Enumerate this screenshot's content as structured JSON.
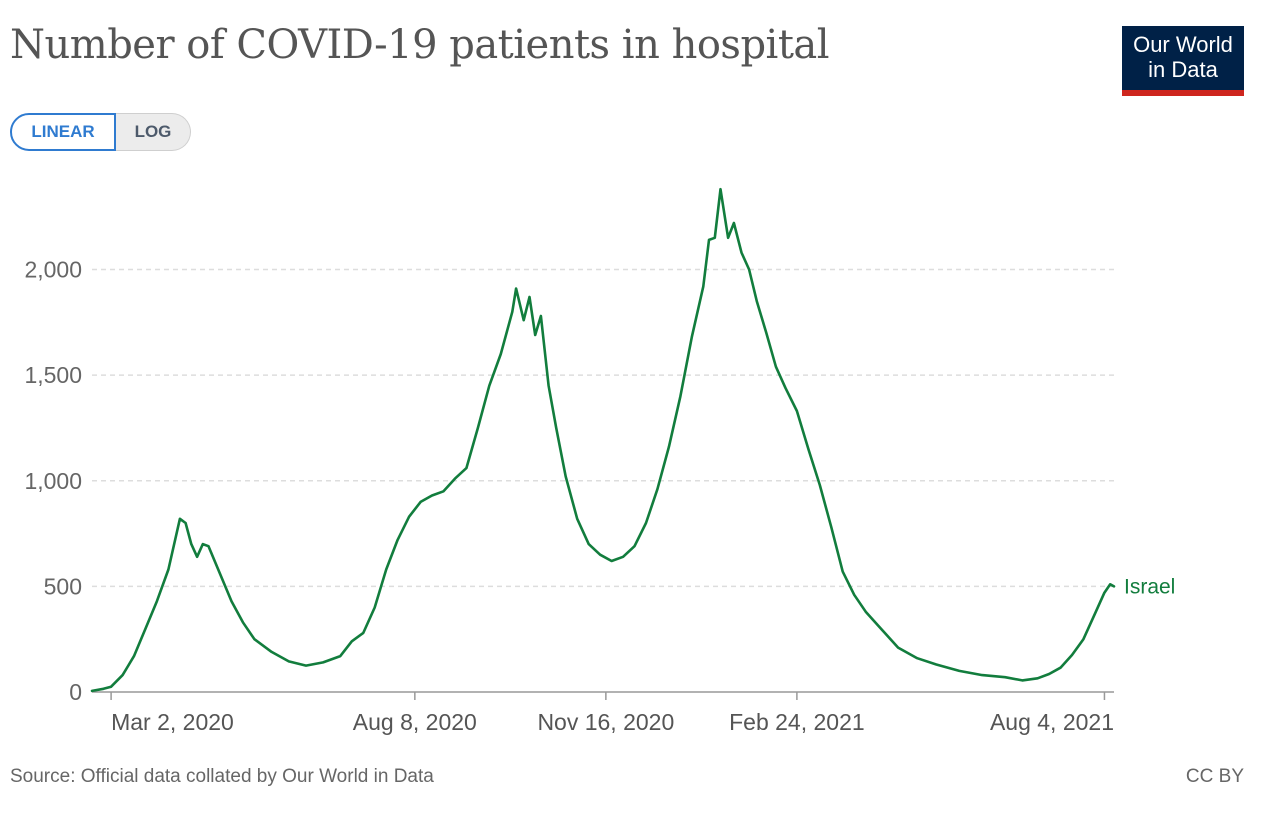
{
  "header": {
    "title": "Number of COVID-19 patients in hospital",
    "logo_line1": "Our World",
    "logo_line2": "in Data"
  },
  "controls": {
    "linear_label": "LINEAR",
    "log_label": "LOG",
    "selected": "LINEAR"
  },
  "footer": {
    "source": "Source: Official data collated by Our World in Data",
    "license": "CC BY"
  },
  "colors": {
    "series": "#127d3d",
    "grid": "#dddddd",
    "logo_bg": "#002147",
    "logo_accent": "#ce261e",
    "active_toggle": "#2f7bd0"
  },
  "chart_data": {
    "type": "line",
    "title": "Number of COVID-19 patients in hospital",
    "xlabel": "",
    "ylabel": "",
    "ylim": [
      0,
      2400
    ],
    "xlim": [
      "2020-02-21",
      "2021-08-09"
    ],
    "grid": "horizontal dashed",
    "y_ticks": [
      {
        "value": 0,
        "label": "0"
      },
      {
        "value": 500,
        "label": "500"
      },
      {
        "value": 1000,
        "label": "1,000"
      },
      {
        "value": 1500,
        "label": "1,500"
      },
      {
        "value": 2000,
        "label": "2,000"
      }
    ],
    "x_ticks": [
      {
        "date": "2020-03-02",
        "label": "Mar 2, 2020"
      },
      {
        "date": "2020-08-08",
        "label": "Aug 8, 2020"
      },
      {
        "date": "2020-11-16",
        "label": "Nov 16, 2020"
      },
      {
        "date": "2021-02-24",
        "label": "Feb 24, 2021"
      },
      {
        "date": "2021-08-04",
        "label": "Aug 4, 2021"
      }
    ],
    "series": [
      {
        "name": "Israel",
        "color": "#127d3d",
        "points": [
          [
            "2020-02-21",
            5
          ],
          [
            "2020-02-27",
            15
          ],
          [
            "2020-03-02",
            25
          ],
          [
            "2020-03-08",
            80
          ],
          [
            "2020-03-14",
            170
          ],
          [
            "2020-03-20",
            300
          ],
          [
            "2020-03-26",
            430
          ],
          [
            "2020-04-01",
            580
          ],
          [
            "2020-04-07",
            820
          ],
          [
            "2020-04-10",
            800
          ],
          [
            "2020-04-13",
            700
          ],
          [
            "2020-04-16",
            640
          ],
          [
            "2020-04-19",
            700
          ],
          [
            "2020-04-22",
            690
          ],
          [
            "2020-04-28",
            560
          ],
          [
            "2020-05-04",
            430
          ],
          [
            "2020-05-10",
            330
          ],
          [
            "2020-05-16",
            250
          ],
          [
            "2020-05-25",
            190
          ],
          [
            "2020-06-03",
            145
          ],
          [
            "2020-06-12",
            125
          ],
          [
            "2020-06-21",
            140
          ],
          [
            "2020-06-30",
            170
          ],
          [
            "2020-07-06",
            240
          ],
          [
            "2020-07-12",
            280
          ],
          [
            "2020-07-18",
            400
          ],
          [
            "2020-07-24",
            580
          ],
          [
            "2020-07-30",
            720
          ],
          [
            "2020-08-05",
            830
          ],
          [
            "2020-08-11",
            900
          ],
          [
            "2020-08-17",
            930
          ],
          [
            "2020-08-23",
            950
          ],
          [
            "2020-08-29",
            1010
          ],
          [
            "2020-09-04",
            1060
          ],
          [
            "2020-09-10",
            1250
          ],
          [
            "2020-09-16",
            1450
          ],
          [
            "2020-09-22",
            1600
          ],
          [
            "2020-09-28",
            1800
          ],
          [
            "2020-09-30",
            1910
          ],
          [
            "2020-10-04",
            1760
          ],
          [
            "2020-10-07",
            1870
          ],
          [
            "2020-10-10",
            1690
          ],
          [
            "2020-10-13",
            1780
          ],
          [
            "2020-10-17",
            1450
          ],
          [
            "2020-10-21",
            1250
          ],
          [
            "2020-10-26",
            1020
          ],
          [
            "2020-11-01",
            820
          ],
          [
            "2020-11-07",
            700
          ],
          [
            "2020-11-13",
            650
          ],
          [
            "2020-11-19",
            620
          ],
          [
            "2020-11-25",
            640
          ],
          [
            "2020-12-01",
            690
          ],
          [
            "2020-12-07",
            800
          ],
          [
            "2020-12-13",
            960
          ],
          [
            "2020-12-19",
            1160
          ],
          [
            "2020-12-25",
            1400
          ],
          [
            "2020-12-31",
            1680
          ],
          [
            "2021-01-06",
            1920
          ],
          [
            "2021-01-09",
            2140
          ],
          [
            "2021-01-12",
            2150
          ],
          [
            "2021-01-15",
            2380
          ],
          [
            "2021-01-19",
            2150
          ],
          [
            "2021-01-22",
            2220
          ],
          [
            "2021-01-26",
            2080
          ],
          [
            "2021-01-30",
            2000
          ],
          [
            "2021-02-03",
            1850
          ],
          [
            "2021-02-08",
            1700
          ],
          [
            "2021-02-13",
            1540
          ],
          [
            "2021-02-18",
            1440
          ],
          [
            "2021-02-24",
            1330
          ],
          [
            "2021-03-02",
            1150
          ],
          [
            "2021-03-08",
            980
          ],
          [
            "2021-03-14",
            780
          ],
          [
            "2021-03-20",
            570
          ],
          [
            "2021-03-26",
            460
          ],
          [
            "2021-04-01",
            380
          ],
          [
            "2021-04-09",
            300
          ],
          [
            "2021-04-18",
            210
          ],
          [
            "2021-04-28",
            160
          ],
          [
            "2021-05-08",
            130
          ],
          [
            "2021-05-20",
            100
          ],
          [
            "2021-06-01",
            80
          ],
          [
            "2021-06-13",
            70
          ],
          [
            "2021-06-22",
            55
          ],
          [
            "2021-06-30",
            65
          ],
          [
            "2021-07-06",
            85
          ],
          [
            "2021-07-12",
            115
          ],
          [
            "2021-07-18",
            175
          ],
          [
            "2021-07-24",
            250
          ],
          [
            "2021-07-30",
            370
          ],
          [
            "2021-08-04",
            470
          ],
          [
            "2021-08-07",
            510
          ],
          [
            "2021-08-09",
            500
          ]
        ]
      }
    ]
  }
}
